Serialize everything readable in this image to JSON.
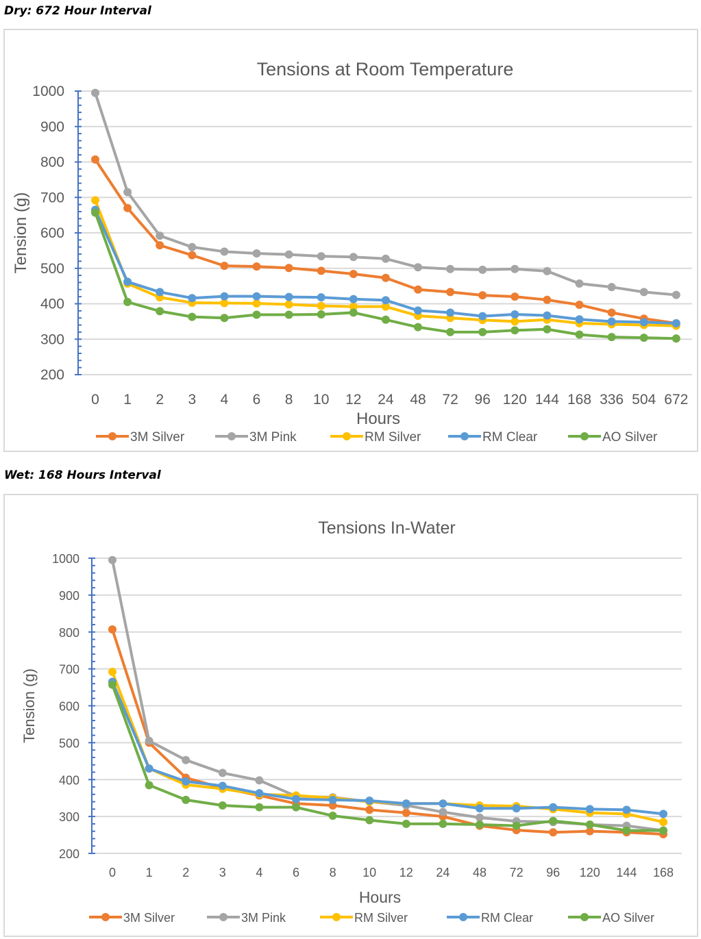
{
  "sections": [
    {
      "label": "Dry: 672 Hour Interval"
    },
    {
      "label": "Wet: 168 Hours Interval"
    }
  ],
  "chart_data": [
    {
      "type": "line",
      "title": "Tensions at Room Temperature",
      "xlabel": "Hours",
      "ylabel": "Tension (g)",
      "ylim": [
        200,
        1000
      ],
      "yticks": [
        200,
        300,
        400,
        500,
        600,
        700,
        800,
        900,
        1000
      ],
      "grid": true,
      "legend": "bottom",
      "categories": [
        "0",
        "1",
        "2",
        "3",
        "4",
        "6",
        "8",
        "10",
        "12",
        "24",
        "48",
        "72",
        "96",
        "120",
        "144",
        "168",
        "336",
        "504",
        "672"
      ],
      "series": [
        {
          "name": "3M Silver",
          "color": "#ED7D31",
          "values": [
            807,
            670,
            565,
            537,
            507,
            505,
            501,
            493,
            484,
            473,
            440,
            433,
            424,
            420,
            411,
            397,
            375,
            358,
            345
          ]
        },
        {
          "name": "3M Pink",
          "color": "#A5A5A5",
          "values": [
            995,
            715,
            592,
            560,
            547,
            542,
            539,
            534,
            532,
            527,
            503,
            498,
            496,
            498,
            492,
            457,
            447,
            433,
            425
          ]
        },
        {
          "name": "RM Silver",
          "color": "#FFC000",
          "values": [
            692,
            457,
            418,
            403,
            402,
            401,
            398,
            394,
            392,
            392,
            366,
            360,
            354,
            350,
            355,
            345,
            342,
            340,
            338
          ]
        },
        {
          "name": "RM Clear",
          "color": "#5B9BD5",
          "values": [
            665,
            462,
            433,
            416,
            421,
            421,
            419,
            418,
            413,
            410,
            381,
            375,
            365,
            370,
            367,
            356,
            350,
            348,
            345
          ]
        },
        {
          "name": "AO Silver",
          "color": "#70AD47",
          "values": [
            657,
            405,
            379,
            363,
            360,
            369,
            369,
            370,
            375,
            355,
            334,
            320,
            320,
            325,
            328,
            313,
            306,
            304,
            302
          ]
        }
      ]
    },
    {
      "type": "line",
      "title": "Tensions In-Water",
      "xlabel": "Hours",
      "ylabel": "Tension (g)",
      "ylim": [
        200,
        1000
      ],
      "yticks": [
        200,
        300,
        400,
        500,
        600,
        700,
        800,
        900,
        1000
      ],
      "grid": true,
      "legend": "bottom",
      "categories": [
        "0",
        "1",
        "2",
        "3",
        "4",
        "6",
        "8",
        "10",
        "12",
        "24",
        "48",
        "72",
        "96",
        "120",
        "144",
        "168"
      ],
      "series": [
        {
          "name": "3M Silver",
          "color": "#ED7D31",
          "values": [
            807,
            500,
            405,
            377,
            357,
            335,
            330,
            318,
            310,
            300,
            275,
            263,
            257,
            260,
            257,
            252
          ]
        },
        {
          "name": "3M Pink",
          "color": "#A5A5A5",
          "values": [
            995,
            505,
            453,
            418,
            398,
            355,
            352,
            340,
            330,
            312,
            297,
            287,
            285,
            278,
            275,
            262
          ]
        },
        {
          "name": "RM Silver",
          "color": "#FFC000",
          "values": [
            692,
            430,
            386,
            375,
            360,
            357,
            350,
            340,
            335,
            335,
            330,
            328,
            320,
            310,
            307,
            285
          ]
        },
        {
          "name": "RM Clear",
          "color": "#5B9BD5",
          "values": [
            665,
            430,
            395,
            383,
            363,
            347,
            345,
            343,
            335,
            335,
            322,
            322,
            325,
            320,
            318,
            307
          ]
        },
        {
          "name": "AO Silver",
          "color": "#70AD47",
          "values": [
            657,
            385,
            345,
            330,
            325,
            325,
            302,
            290,
            280,
            280,
            278,
            275,
            288,
            278,
            262,
            262
          ]
        }
      ]
    }
  ]
}
